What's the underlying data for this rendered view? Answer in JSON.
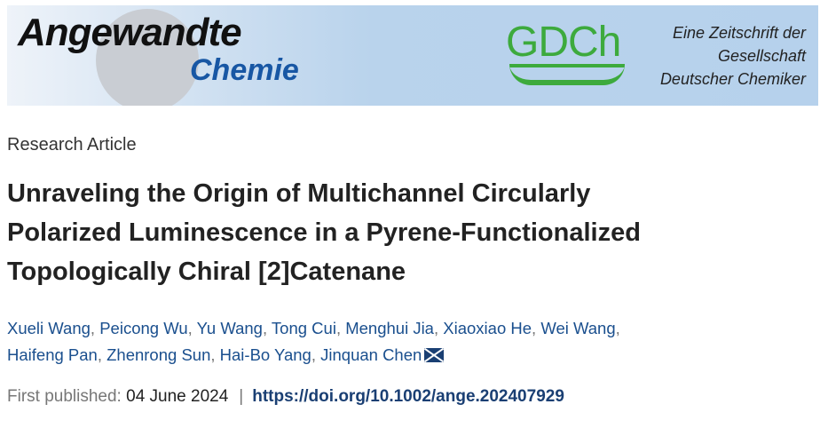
{
  "banner": {
    "journal_line1": "Angewandte",
    "journal_line2": "Chemie",
    "society_logo": "GDCh",
    "tagline": [
      "Eine Zeitschrift der",
      "Gesellschaft",
      "Deutscher Chemiker"
    ],
    "colors": {
      "chemie": "#1857a4",
      "gdch": "#3daa3d"
    }
  },
  "article": {
    "type": "Research Article",
    "title_lines": [
      "Unraveling the Origin of Multichannel Circularly",
      "Polarized Luminescence in a Pyrene-Functionalized",
      "Topologically Chiral [2]Catenane"
    ],
    "authors": [
      "Xueli Wang",
      "Peicong Wu",
      "Yu Wang",
      "Tong Cui",
      "Menghui Jia",
      "Xiaoxiao He",
      "Wei Wang",
      "Haifeng Pan",
      "Zhenrong Sun",
      "Hai-Bo Yang",
      "Jinquan Chen"
    ],
    "corresponding_icon": "envelope-icon",
    "published_label": "First published:",
    "published_date": "04 June 2024",
    "separator": "|",
    "doi": "https://doi.org/10.1002/ange.202407929"
  }
}
